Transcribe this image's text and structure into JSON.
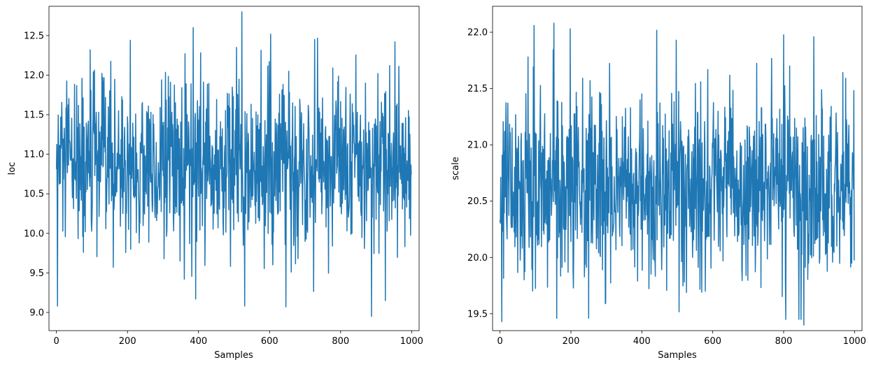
{
  "chart_data": [
    {
      "type": "line",
      "title": "",
      "xlabel": "Samples",
      "ylabel": "loc",
      "xlim": [
        -21,
        1021
      ],
      "ylim": [
        8.77,
        12.87
      ],
      "xticks": [
        0,
        200,
        400,
        600,
        800,
        1000
      ],
      "xtick_labels": [
        "0",
        "200",
        "400",
        "600",
        "800",
        "1000"
      ],
      "yticks": [
        9.0,
        9.5,
        10.0,
        10.5,
        11.0,
        11.5,
        12.0,
        12.5
      ],
      "ytick_labels": [
        "9.0",
        "9.5",
        "10.0",
        "10.5",
        "11.0",
        "11.5",
        "12.0",
        "12.5"
      ],
      "color": "#1f77b4",
      "n_samples": 1000,
      "summary": {
        "center": 10.85,
        "min": 8.95,
        "max": 12.8
      },
      "notable_points": [
        {
          "x": 3,
          "y": 9.08
        },
        {
          "x": 95,
          "y": 12.32
        },
        {
          "x": 385,
          "y": 12.6
        },
        {
          "x": 392,
          "y": 9.17
        },
        {
          "x": 522,
          "y": 12.8
        },
        {
          "x": 530,
          "y": 9.08
        },
        {
          "x": 646,
          "y": 9.07
        },
        {
          "x": 727,
          "y": 12.45
        },
        {
          "x": 887,
          "y": 8.95
        },
        {
          "x": 953,
          "y": 12.42
        }
      ]
    },
    {
      "type": "line",
      "title": "",
      "xlabel": "Samples",
      "ylabel": "scale",
      "xlim": [
        -21,
        1021
      ],
      "ylim": [
        19.35,
        22.23
      ],
      "xticks": [
        0,
        200,
        400,
        600,
        800,
        1000
      ],
      "xtick_labels": [
        "0",
        "200",
        "400",
        "600",
        "800",
        "1000"
      ],
      "yticks": [
        19.5,
        20.0,
        20.5,
        21.0,
        21.5,
        22.0
      ],
      "ytick_labels": [
        "19.5",
        "20.0",
        "20.5",
        "21.0",
        "21.5",
        "22.0"
      ],
      "color": "#1f77b4",
      "n_samples": 1000,
      "summary": {
        "center": 20.65,
        "min": 19.4,
        "max": 22.08
      },
      "notable_points": [
        {
          "x": 5,
          "y": 19.43
        },
        {
          "x": 96,
          "y": 22.06
        },
        {
          "x": 152,
          "y": 22.08
        },
        {
          "x": 250,
          "y": 19.46
        },
        {
          "x": 497,
          "y": 21.93
        },
        {
          "x": 857,
          "y": 19.4
        },
        {
          "x": 885,
          "y": 21.96
        }
      ]
    }
  ]
}
